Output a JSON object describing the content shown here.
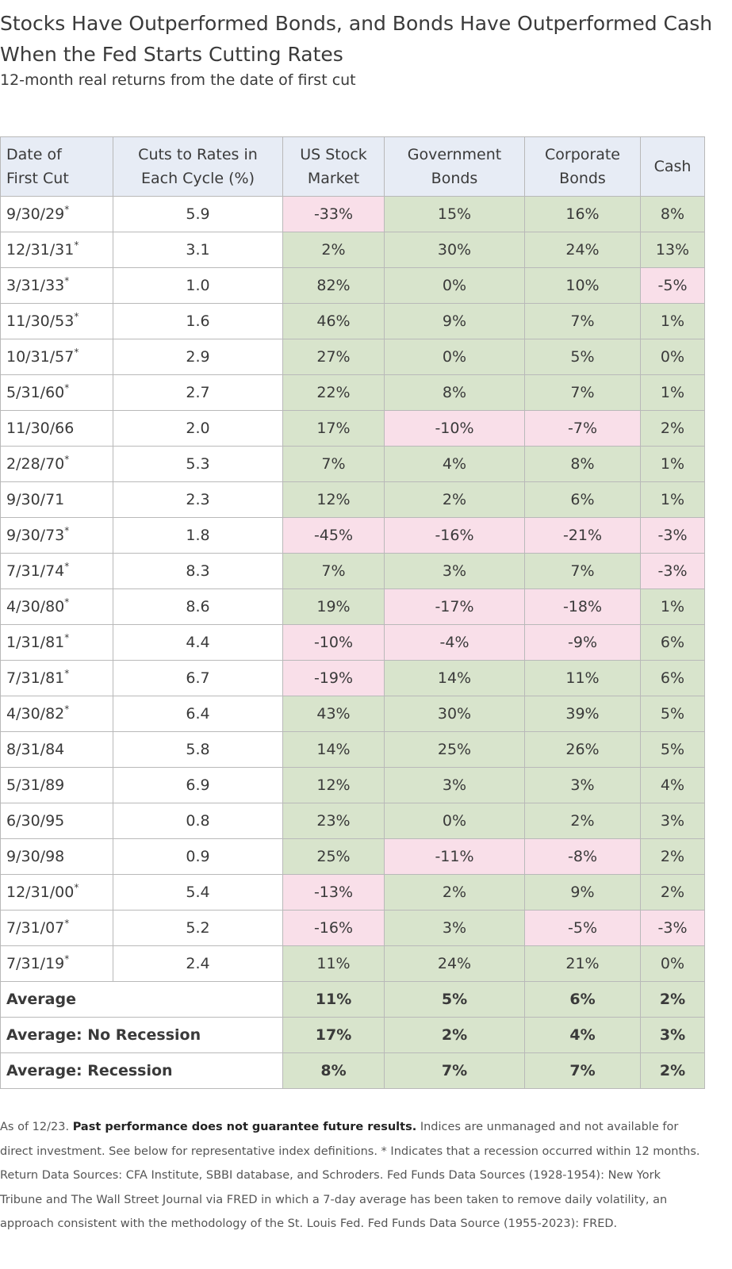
{
  "title": "Stocks Have Outperformed Bonds, and Bonds Have Outperformed Cash When the Fed Starts Cutting Rates",
  "subtitle": "12-month real returns from the date of first cut",
  "colors": {
    "positive": "#d8e4cc",
    "negative": "#f9dfe9",
    "header": "#e7ecf5"
  },
  "chart_data": {
    "type": "table",
    "columns": [
      "Date of First Cut",
      "Cuts to Rates in Each Cycle (%)",
      "US Stock Market",
      "Government Bonds",
      "Corporate Bonds",
      "Cash"
    ],
    "rows": [
      {
        "date": "9/30/29",
        "star": "*",
        "cuts": "5.9",
        "stock": "-33%",
        "gov": "15%",
        "corp": "16%",
        "cash": "8%"
      },
      {
        "date": "12/31/31",
        "star": "*",
        "cuts": "3.1",
        "stock": "2%",
        "gov": "30%",
        "corp": "24%",
        "cash": "13%"
      },
      {
        "date": "3/31/33",
        "star": "*",
        "cuts": "1.0",
        "stock": "82%",
        "gov": "0%",
        "corp": "10%",
        "cash": "-5%"
      },
      {
        "date": "11/30/53",
        "star": "*",
        "cuts": "1.6",
        "stock": "46%",
        "gov": "9%",
        "corp": "7%",
        "cash": "1%"
      },
      {
        "date": "10/31/57",
        "star": "*",
        "cuts": "2.9",
        "stock": "27%",
        "gov": "0%",
        "corp": "5%",
        "cash": "0%"
      },
      {
        "date": "5/31/60",
        "star": "*",
        "cuts": "2.7",
        "stock": "22%",
        "gov": "8%",
        "corp": "7%",
        "cash": "1%"
      },
      {
        "date": "11/30/66",
        "star": "",
        "cuts": "2.0",
        "stock": "17%",
        "gov": "-10%",
        "corp": "-7%",
        "cash": "2%"
      },
      {
        "date": "2/28/70",
        "star": "*",
        "cuts": "5.3",
        "stock": "7%",
        "gov": "4%",
        "corp": "8%",
        "cash": "1%"
      },
      {
        "date": "9/30/71",
        "star": "",
        "cuts": "2.3",
        "stock": "12%",
        "gov": "2%",
        "corp": "6%",
        "cash": "1%"
      },
      {
        "date": "9/30/73",
        "star": "*",
        "cuts": "1.8",
        "stock": "-45%",
        "gov": "-16%",
        "corp": "-21%",
        "cash": "-3%"
      },
      {
        "date": "7/31/74",
        "star": "*",
        "cuts": "8.3",
        "stock": "7%",
        "gov": "3%",
        "corp": "7%",
        "cash": "-3%"
      },
      {
        "date": "4/30/80",
        "star": "*",
        "cuts": "8.6",
        "stock": "19%",
        "gov": "-17%",
        "corp": "-18%",
        "cash": "1%"
      },
      {
        "date": "1/31/81",
        "star": "*",
        "cuts": "4.4",
        "stock": "-10%",
        "gov": "-4%",
        "corp": "-9%",
        "cash": "6%"
      },
      {
        "date": "7/31/81",
        "star": "*",
        "cuts": "6.7",
        "stock": "-19%",
        "gov": "14%",
        "corp": "11%",
        "cash": "6%"
      },
      {
        "date": "4/30/82",
        "star": "*",
        "cuts": "6.4",
        "stock": "43%",
        "gov": "30%",
        "corp": "39%",
        "cash": "5%"
      },
      {
        "date": "8/31/84",
        "star": "",
        "cuts": "5.8",
        "stock": "14%",
        "gov": "25%",
        "corp": "26%",
        "cash": "5%"
      },
      {
        "date": "5/31/89",
        "star": "",
        "cuts": "6.9",
        "stock": "12%",
        "gov": "3%",
        "corp": "3%",
        "cash": "4%"
      },
      {
        "date": "6/30/95",
        "star": "",
        "cuts": "0.8",
        "stock": "23%",
        "gov": "0%",
        "corp": "2%",
        "cash": "3%"
      },
      {
        "date": "9/30/98",
        "star": "",
        "cuts": "0.9",
        "stock": "25%",
        "gov": "-11%",
        "corp": "-8%",
        "cash": "2%"
      },
      {
        "date": "12/31/00",
        "star": "*",
        "cuts": "5.4",
        "stock": "-13%",
        "gov": "2%",
        "corp": "9%",
        "cash": "2%"
      },
      {
        "date": "7/31/07",
        "star": "*",
        "cuts": "5.2",
        "stock": "-16%",
        "gov": "3%",
        "corp": "-5%",
        "cash": "-3%"
      },
      {
        "date": "7/31/19",
        "star": "*",
        "cuts": "2.4",
        "stock": "11%",
        "gov": "24%",
        "corp": "21%",
        "cash": "0%"
      }
    ],
    "averages": [
      {
        "label": "Average",
        "stock": "11%",
        "gov": "5%",
        "corp": "6%",
        "cash": "2%"
      },
      {
        "label": "Average: No Recession",
        "stock": "17%",
        "gov": "2%",
        "corp": "4%",
        "cash": "3%"
      },
      {
        "label": "Average: Recession",
        "stock": "8%",
        "gov": "7%",
        "corp": "7%",
        "cash": "2%"
      }
    ]
  },
  "headers": {
    "date_line1": "Date of",
    "date_line2": "First Cut",
    "cuts_line1": "Cuts to Rates in",
    "cuts_line2": "Each Cycle (%)",
    "stock_line1": "US Stock",
    "stock_line2": "Market",
    "gov_line1": "Government",
    "gov_line2": "Bonds",
    "corp_line1": "Corporate",
    "corp_line2": "Bonds",
    "cash": "Cash"
  },
  "footnote": {
    "prefix": "As of 12/23. ",
    "bold": "Past performance does not guarantee future results.",
    "rest": " Indices are unmanaged and not available for direct investment. See below for representative index definitions. * Indicates that a recession occurred within 12 months. Return Data Sources: CFA Institute, SBBI database, and Schroders. Fed Funds Data Sources (1928-1954): New York Tribune and The Wall Street Journal via FRED in which a 7-day average has been taken to remove daily volatility, an approach consistent with the methodology of the St. Louis Fed. Fed Funds Data Source (1955-2023): FRED."
  }
}
